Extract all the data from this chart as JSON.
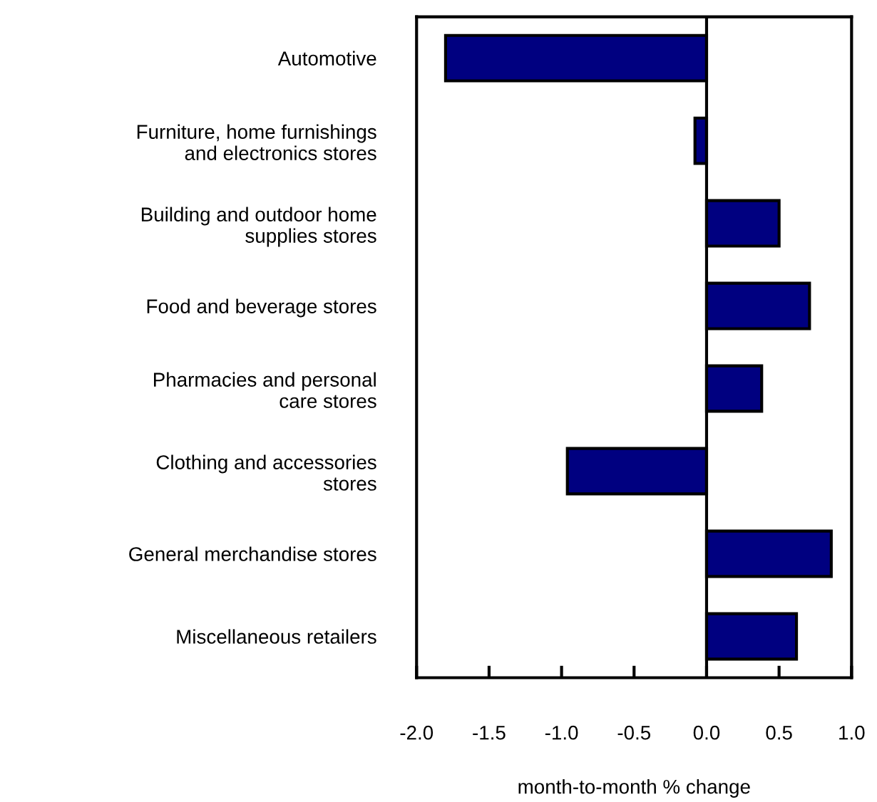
{
  "chart_data": {
    "type": "bar",
    "orientation": "horizontal",
    "xlabel": "month-to-month % change",
    "categories": [
      "Automotive",
      "Furniture, home furnishings\nand electronics stores",
      "Building and outdoor home\nsupplies stores",
      "Food and beverage stores",
      "Pharmacies and personal\ncare stores",
      "Clothing and accessories\nstores",
      "General merchandise stores",
      "Miscellaneous retailers"
    ],
    "values": [
      -1.8,
      -0.08,
      0.5,
      0.71,
      0.38,
      -0.96,
      0.86,
      0.62
    ],
    "color": "#000080",
    "xlim": [
      -2.0,
      1.0
    ],
    "xticks": [
      {
        "value": -2.0,
        "label": "-2.0"
      },
      {
        "value": -1.5,
        "label": "-1.5"
      },
      {
        "value": -1.0,
        "label": "-1.0"
      },
      {
        "value": -0.5,
        "label": "-0.5"
      },
      {
        "value": 0.0,
        "label": "0.0"
      },
      {
        "value": 0.5,
        "label": "0.5"
      },
      {
        "value": 1.0,
        "label": "1.0"
      }
    ],
    "ref_lines": [
      {
        "axis": "x",
        "value": 0.0,
        "color": "#000000"
      }
    ],
    "grid": false,
    "legend": false
  }
}
